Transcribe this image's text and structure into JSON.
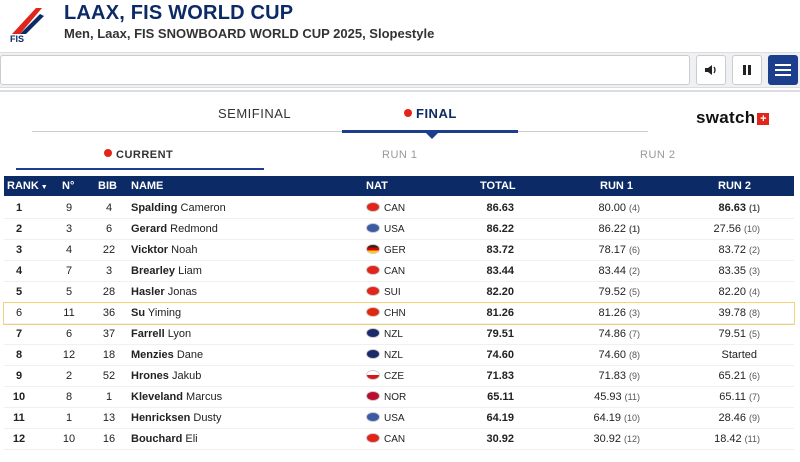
{
  "header": {
    "logo_text": "FIS",
    "title": "LAAX, FIS WORLD CUP",
    "subtitle": "Men, Laax, FIS SNOWBOARD WORLD CUP 2025, Slopestyle"
  },
  "phases": {
    "semifinal": "SEMIFINAL",
    "final": "FINAL"
  },
  "sponsor": "swatch",
  "subtabs": {
    "current": "CURRENT",
    "run1": "RUN 1",
    "run2": "RUN 2"
  },
  "table": {
    "headers": {
      "rank": "RANK",
      "no": "N°",
      "bib": "BIB",
      "name": "NAME",
      "nat": "NAT",
      "total": "TOTAL",
      "run1": "RUN 1",
      "run2": "RUN 2"
    },
    "rows": [
      {
        "rank": "1",
        "no": "9",
        "bib": "4",
        "last": "Spalding",
        "first": "Cameron",
        "nat": "CAN",
        "flag": "#e1251b",
        "total": "86.63",
        "run1": "80.00",
        "run1_rank": "(4)",
        "run2": "86.63",
        "run2_rank": "(1)"
      },
      {
        "rank": "2",
        "no": "3",
        "bib": "6",
        "last": "Gerard",
        "first": "Redmond",
        "nat": "USA",
        "flag": "#3b5ba5",
        "total": "86.22",
        "run1": "86.22",
        "run1_rank": "(1)",
        "run2": "27.56",
        "run2_rank": "(10)"
      },
      {
        "rank": "3",
        "no": "4",
        "bib": "22",
        "last": "Vicktor",
        "first": "Noah",
        "nat": "GER",
        "flag": "#222222",
        "total": "83.72",
        "run1": "78.17",
        "run1_rank": "(6)",
        "run2": "83.72",
        "run2_rank": "(2)"
      },
      {
        "rank": "4",
        "no": "7",
        "bib": "3",
        "last": "Brearley",
        "first": "Liam",
        "nat": "CAN",
        "flag": "#e1251b",
        "total": "83.44",
        "run1": "83.44",
        "run1_rank": "(2)",
        "run2": "83.35",
        "run2_rank": "(3)"
      },
      {
        "rank": "5",
        "no": "5",
        "bib": "28",
        "last": "Hasler",
        "first": "Jonas",
        "nat": "SUI",
        "flag": "#e1251b",
        "total": "82.20",
        "run1": "79.52",
        "run1_rank": "(5)",
        "run2": "82.20",
        "run2_rank": "(4)"
      },
      {
        "rank": "6",
        "no": "11",
        "bib": "36",
        "last": "Su",
        "first": "Yiming",
        "nat": "CHN",
        "flag": "#de2910",
        "total": "81.26",
        "run1": "81.26",
        "run1_rank": "(3)",
        "run2": "39.78",
        "run2_rank": "(8)"
      },
      {
        "rank": "7",
        "no": "6",
        "bib": "37",
        "last": "Farrell",
        "first": "Lyon",
        "nat": "NZL",
        "flag": "#1b2a6b",
        "total": "79.51",
        "run1": "74.86",
        "run1_rank": "(7)",
        "run2": "79.51",
        "run2_rank": "(5)"
      },
      {
        "rank": "8",
        "no": "12",
        "bib": "18",
        "last": "Menzies",
        "first": "Dane",
        "nat": "NZL",
        "flag": "#1b2a6b",
        "total": "74.60",
        "run1": "74.60",
        "run1_rank": "(8)",
        "run2": "Started",
        "run2_rank": ""
      },
      {
        "rank": "9",
        "no": "2",
        "bib": "52",
        "last": "Hrones",
        "first": "Jakub",
        "nat": "CZE",
        "flag": "#2a57a5",
        "total": "71.83",
        "run1": "71.83",
        "run1_rank": "(9)",
        "run2": "65.21",
        "run2_rank": "(6)"
      },
      {
        "rank": "10",
        "no": "8",
        "bib": "1",
        "last": "Kleveland",
        "first": "Marcus",
        "nat": "NOR",
        "flag": "#ba0c2f",
        "total": "65.11",
        "run1": "45.93",
        "run1_rank": "(11)",
        "run2": "65.11",
        "run2_rank": "(7)"
      },
      {
        "rank": "11",
        "no": "1",
        "bib": "13",
        "last": "Henricksen",
        "first": "Dusty",
        "nat": "USA",
        "flag": "#3b5ba5",
        "total": "64.19",
        "run1": "64.19",
        "run1_rank": "(10)",
        "run2": "28.46",
        "run2_rank": "(9)"
      },
      {
        "rank": "12",
        "no": "10",
        "bib": "16",
        "last": "Bouchard",
        "first": "Eli",
        "nat": "CAN",
        "flag": "#e1251b",
        "total": "30.92",
        "run1": "30.92",
        "run1_rank": "(12)",
        "run2": "18.42",
        "run2_rank": "(11)"
      }
    ]
  },
  "colors": {
    "brand": "#0b2a66",
    "accent": "#1b3f8c",
    "live": "#e1251b"
  }
}
